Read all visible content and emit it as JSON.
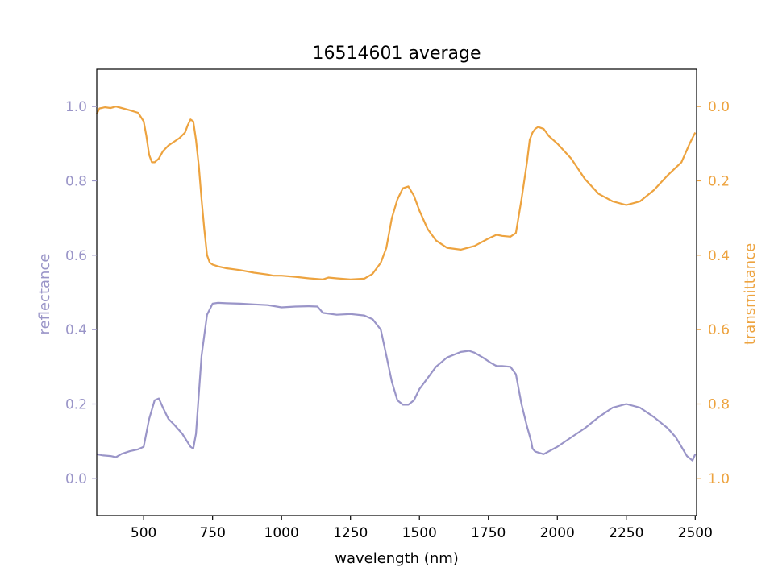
{
  "chart_data": {
    "type": "line",
    "title": "16514601 average",
    "xlabel": "wavelength (nm)",
    "ylabel_left": "reflectance",
    "ylabel_right": "transmittance",
    "xlim": [
      330,
      2505
    ],
    "ylim_left": [
      -0.1,
      1.1
    ],
    "ylim_right": [
      1.1,
      -0.1
    ],
    "right_axis_inverted": true,
    "grid": false,
    "x_ticks": [
      "500",
      "750",
      "1000",
      "1250",
      "1500",
      "1750",
      "2000",
      "2250",
      "2500"
    ],
    "y_ticks_left": [
      "0.0",
      "0.2",
      "0.4",
      "0.6",
      "0.8",
      "1.0"
    ],
    "y_ticks_right": [
      "0.0",
      "0.2",
      "0.4",
      "0.6",
      "0.8",
      "1.0"
    ],
    "colors": {
      "reflectance": "#9a95c8",
      "transmittance": "#eda33f"
    },
    "series": [
      {
        "axis": "left",
        "x": [
          330,
          350,
          380,
          400,
          420,
          450,
          480,
          500,
          520,
          540,
          555,
          570,
          590,
          610,
          640,
          670,
          680,
          690,
          710,
          730,
          750,
          770,
          800,
          850,
          900,
          950,
          1000,
          1050,
          1100,
          1130,
          1150,
          1200,
          1250,
          1300,
          1330,
          1360,
          1380,
          1400,
          1420,
          1440,
          1460,
          1480,
          1500,
          1530,
          1560,
          1600,
          1650,
          1680,
          1700,
          1730,
          1760,
          1780,
          1800,
          1830,
          1850,
          1870,
          1890,
          1905,
          1910,
          1920,
          1950,
          2000,
          2050,
          2100,
          2150,
          2200,
          2250,
          2300,
          2350,
          2400,
          2430,
          2450,
          2470,
          2490,
          2500
        ],
        "y": [
          0.065,
          0.062,
          0.06,
          0.057,
          0.066,
          0.073,
          0.078,
          0.085,
          0.16,
          0.21,
          0.215,
          0.19,
          0.16,
          0.145,
          0.12,
          0.085,
          0.08,
          0.12,
          0.33,
          0.44,
          0.47,
          0.472,
          0.471,
          0.47,
          0.468,
          0.466,
          0.46,
          0.462,
          0.463,
          0.462,
          0.445,
          0.44,
          0.442,
          0.438,
          0.428,
          0.4,
          0.33,
          0.26,
          0.21,
          0.198,
          0.198,
          0.21,
          0.24,
          0.27,
          0.3,
          0.325,
          0.34,
          0.343,
          0.338,
          0.325,
          0.31,
          0.302,
          0.302,
          0.3,
          0.28,
          0.2,
          0.14,
          0.1,
          0.08,
          0.072,
          0.065,
          0.085,
          0.11,
          0.135,
          0.165,
          0.19,
          0.2,
          0.19,
          0.165,
          0.135,
          0.11,
          0.085,
          0.06,
          0.048,
          0.065
        ]
      },
      {
        "axis": "right",
        "x": [
          330,
          340,
          360,
          380,
          400,
          420,
          450,
          480,
          500,
          510,
          520,
          530,
          540,
          555,
          570,
          590,
          610,
          630,
          650,
          660,
          670,
          680,
          690,
          700,
          710,
          720,
          730,
          740,
          750,
          770,
          800,
          850,
          900,
          950,
          970,
          990,
          1000,
          1050,
          1100,
          1150,
          1170,
          1200,
          1250,
          1300,
          1330,
          1360,
          1380,
          1400,
          1420,
          1440,
          1460,
          1480,
          1500,
          1530,
          1560,
          1600,
          1650,
          1700,
          1750,
          1780,
          1800,
          1830,
          1850,
          1870,
          1890,
          1900,
          1910,
          1920,
          1930,
          1950,
          1970,
          2000,
          2050,
          2100,
          2150,
          2200,
          2250,
          2300,
          2350,
          2400,
          2450,
          2480,
          2500
        ],
        "y": [
          0.02,
          0.005,
          0.002,
          0.004,
          0.0,
          0.004,
          0.01,
          0.017,
          0.04,
          0.08,
          0.13,
          0.15,
          0.15,
          0.14,
          0.12,
          0.105,
          0.095,
          0.085,
          0.07,
          0.05,
          0.035,
          0.04,
          0.09,
          0.16,
          0.25,
          0.33,
          0.4,
          0.42,
          0.425,
          0.43,
          0.435,
          0.44,
          0.447,
          0.452,
          0.455,
          0.455,
          0.455,
          0.458,
          0.462,
          0.465,
          0.46,
          0.462,
          0.465,
          0.463,
          0.45,
          0.42,
          0.38,
          0.3,
          0.25,
          0.22,
          0.215,
          0.24,
          0.28,
          0.33,
          0.36,
          0.38,
          0.385,
          0.375,
          0.355,
          0.345,
          0.348,
          0.35,
          0.34,
          0.25,
          0.15,
          0.09,
          0.07,
          0.06,
          0.055,
          0.06,
          0.08,
          0.1,
          0.14,
          0.195,
          0.235,
          0.255,
          0.265,
          0.255,
          0.225,
          0.185,
          0.15,
          0.1,
          0.07
        ]
      }
    ]
  }
}
